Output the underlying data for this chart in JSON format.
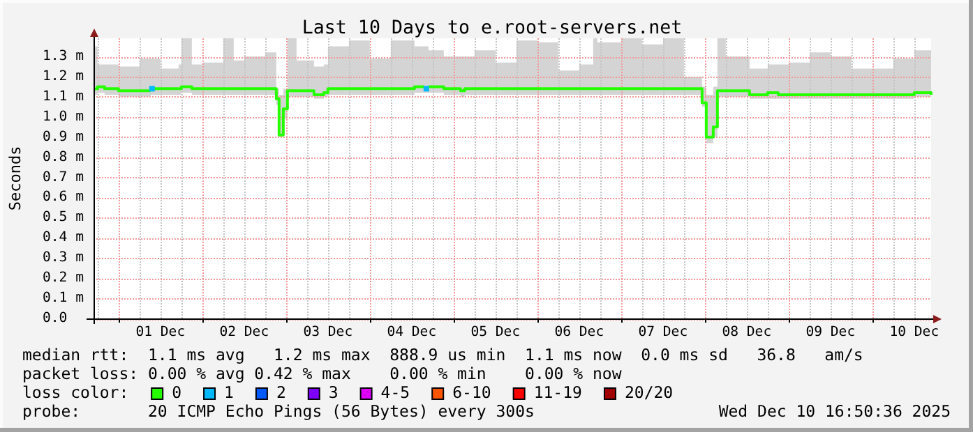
{
  "chart_data": {
    "type": "step",
    "title": "Last 10 Days to e.root-servers.net",
    "ylabel": "Seconds",
    "legend_title": "loss color:",
    "legend": "bottom",
    "grid": true,
    "x": [
      "2025-11-30T16:50",
      "2025-11-30T18:00",
      "2025-11-30T20:00",
      "2025-12-01T00:00",
      "2025-12-01T06:00",
      "2025-12-01T09:12",
      "2025-12-01T10:00",
      "2025-12-01T12:00",
      "2025-12-01T17:12",
      "2025-12-01T18:00",
      "2025-12-01T21:00",
      "2025-12-02T00:00",
      "2025-12-02T06:00",
      "2025-12-02T09:00",
      "2025-12-02T12:00",
      "2025-12-02T18:00",
      "2025-12-02T21:12",
      "2025-12-02T22:00",
      "2025-12-02T23:12",
      "2025-12-03T00:24",
      "2025-12-03T03:00",
      "2025-12-03T08:00",
      "2025-12-03T10:48",
      "2025-12-03T12:00",
      "2025-12-03T18:00",
      "2025-12-04T00:00",
      "2025-12-04T06:00",
      "2025-12-04T12:48",
      "2025-12-04T15:36",
      "2025-12-04T16:48",
      "2025-12-04T21:12",
      "2025-12-05T02:00",
      "2025-12-05T03:12",
      "2025-12-05T06:00",
      "2025-12-05T12:00",
      "2025-12-05T18:00",
      "2025-12-06T00:00",
      "2025-12-06T06:00",
      "2025-12-06T12:00",
      "2025-12-06T16:00",
      "2025-12-06T17:12",
      "2025-12-07T00:00",
      "2025-12-07T06:00",
      "2025-12-07T12:00",
      "2025-12-07T18:00",
      "2025-12-07T23:12",
      "2025-12-08T00:24",
      "2025-12-08T02:24",
      "2025-12-08T03:36",
      "2025-12-08T06:00",
      "2025-12-08T12:48",
      "2025-12-08T18:00",
      "2025-12-08T21:00",
      "2025-12-09T00:00",
      "2025-12-09T06:00",
      "2025-12-09T12:00",
      "2025-12-09T18:00",
      "2025-12-10T00:00",
      "2025-12-10T06:00",
      "2025-12-10T12:00",
      "2025-12-10T16:50"
    ],
    "xlim": [
      "2025-11-30T16:50",
      "2025-12-10T16:50"
    ],
    "xticks": [
      {
        "value": "2025-11-30T18:00",
        "label": null
      },
      {
        "value": "2025-12-01T00:00",
        "label": null
      },
      {
        "value": "2025-12-01T06:00",
        "label": null
      },
      {
        "value": "2025-12-01T12:00",
        "label": "01 Dec"
      },
      {
        "value": "2025-12-01T18:00",
        "label": null
      },
      {
        "value": "2025-12-02T00:00",
        "label": null
      },
      {
        "value": "2025-12-02T06:00",
        "label": null
      },
      {
        "value": "2025-12-02T12:00",
        "label": "02 Dec"
      },
      {
        "value": "2025-12-02T18:00",
        "label": null
      },
      {
        "value": "2025-12-03T00:00",
        "label": null
      },
      {
        "value": "2025-12-03T06:00",
        "label": null
      },
      {
        "value": "2025-12-03T12:00",
        "label": "03 Dec"
      },
      {
        "value": "2025-12-03T18:00",
        "label": null
      },
      {
        "value": "2025-12-04T00:00",
        "label": null
      },
      {
        "value": "2025-12-04T06:00",
        "label": null
      },
      {
        "value": "2025-12-04T12:00",
        "label": "04 Dec"
      },
      {
        "value": "2025-12-04T18:00",
        "label": null
      },
      {
        "value": "2025-12-05T00:00",
        "label": null
      },
      {
        "value": "2025-12-05T06:00",
        "label": null
      },
      {
        "value": "2025-12-05T12:00",
        "label": "05 Dec"
      },
      {
        "value": "2025-12-05T18:00",
        "label": null
      },
      {
        "value": "2025-12-06T00:00",
        "label": null
      },
      {
        "value": "2025-12-06T06:00",
        "label": null
      },
      {
        "value": "2025-12-06T12:00",
        "label": "06 Dec"
      },
      {
        "value": "2025-12-06T18:00",
        "label": null
      },
      {
        "value": "2025-12-07T00:00",
        "label": null
      },
      {
        "value": "2025-12-07T06:00",
        "label": null
      },
      {
        "value": "2025-12-07T12:00",
        "label": "07 Dec"
      },
      {
        "value": "2025-12-07T18:00",
        "label": null
      },
      {
        "value": "2025-12-08T00:00",
        "label": null
      },
      {
        "value": "2025-12-08T06:00",
        "label": null
      },
      {
        "value": "2025-12-08T12:00",
        "label": "08 Dec"
      },
      {
        "value": "2025-12-08T18:00",
        "label": null
      },
      {
        "value": "2025-12-09T00:00",
        "label": null
      },
      {
        "value": "2025-12-09T06:00",
        "label": null
      },
      {
        "value": "2025-12-09T12:00",
        "label": "09 Dec"
      },
      {
        "value": "2025-12-09T18:00",
        "label": null
      },
      {
        "value": "2025-12-10T00:00",
        "label": null
      },
      {
        "value": "2025-12-10T06:00",
        "label": null
      },
      {
        "value": "2025-12-10T12:00",
        "label": "10 Dec"
      }
    ],
    "ylim": [
      0,
      1.39
    ],
    "yticks": [
      {
        "value": 0,
        "label": "0.0"
      },
      {
        "value": 0.1,
        "label": "0.1 m"
      },
      {
        "value": 0.2,
        "label": "0.2 m"
      },
      {
        "value": 0.3,
        "label": "0.3 m"
      },
      {
        "value": 0.4,
        "label": "0.4 m"
      },
      {
        "value": 0.5,
        "label": "0.5 m"
      },
      {
        "value": 0.6,
        "label": "0.6 m"
      },
      {
        "value": 0.7,
        "label": "0.7 m"
      },
      {
        "value": 0.8,
        "label": "0.8 m"
      },
      {
        "value": 0.9,
        "label": "0.9 m"
      },
      {
        "value": 1.0,
        "label": "1.0 m"
      },
      {
        "value": 1.1,
        "label": "1.1 m"
      },
      {
        "value": 1.2,
        "label": "1.2 m"
      },
      {
        "value": 1.3,
        "label": "1.3 m"
      }
    ],
    "series": [
      {
        "name": "0",
        "color": "#26ff00",
        "values": [
          1.14,
          1.15,
          1.14,
          1.13,
          1.13,
          null,
          1.14,
          1.14,
          1.14,
          1.15,
          1.14,
          1.14,
          1.14,
          1.14,
          1.14,
          1.14,
          1.09,
          0.91,
          1.04,
          1.13,
          1.13,
          1.11,
          1.12,
          1.14,
          1.14,
          1.14,
          1.14,
          1.15,
          null,
          1.15,
          1.14,
          1.13,
          1.14,
          1.14,
          1.14,
          1.14,
          1.14,
          1.14,
          1.14,
          1.14,
          1.14,
          1.14,
          1.14,
          1.14,
          1.14,
          1.07,
          0.9,
          0.95,
          1.13,
          1.13,
          1.11,
          1.12,
          1.11,
          1.11,
          1.11,
          1.11,
          1.11,
          1.11,
          1.11,
          1.12,
          1.11
        ],
        "lower": [
          1.11,
          1.12,
          1.11,
          1.1,
          1.1,
          1.11,
          1.11,
          1.11,
          1.11,
          1.12,
          1.11,
          1.11,
          1.11,
          1.11,
          1.11,
          1.11,
          1.06,
          0.9,
          0.99,
          1.1,
          1.1,
          1.09,
          1.1,
          1.11,
          1.11,
          1.11,
          1.11,
          1.12,
          1.12,
          1.12,
          1.11,
          1.1,
          1.11,
          1.11,
          1.11,
          1.11,
          1.11,
          1.11,
          1.11,
          1.11,
          1.11,
          1.11,
          1.11,
          1.11,
          1.11,
          1.05,
          0.87,
          0.9,
          1.1,
          1.1,
          1.09,
          1.09,
          1.09,
          1.09,
          1.09,
          1.09,
          1.09,
          1.09,
          1.09,
          1.1,
          1.09
        ],
        "upper": [
          1.35,
          1.26,
          1.26,
          1.25,
          1.29,
          1.29,
          1.29,
          1.24,
          1.26,
          1.39,
          1.26,
          1.27,
          1.39,
          1.28,
          1.3,
          1.32,
          1.14,
          1.11,
          1.14,
          1.39,
          1.28,
          1.25,
          1.26,
          1.35,
          1.38,
          1.29,
          1.38,
          1.35,
          1.35,
          1.33,
          1.3,
          1.3,
          1.3,
          1.33,
          1.27,
          1.38,
          1.37,
          1.23,
          1.26,
          1.39,
          1.37,
          1.39,
          1.36,
          1.39,
          1.2,
          1.15,
          1.11,
          1.15,
          1.39,
          1.3,
          1.24,
          1.26,
          1.26,
          1.27,
          1.32,
          1.3,
          1.24,
          1.24,
          1.29,
          1.33,
          1.33
        ]
      },
      {
        "name": "1",
        "color": "#00b8ff",
        "type": "scatter",
        "marker": "square",
        "x": [
          "2025-12-01T09:36",
          "2025-12-04T16:12"
        ],
        "values": [
          1.14,
          1.14
        ]
      },
      {
        "name": "2",
        "color": "#0059ff",
        "values": [
          null,
          null,
          null,
          null,
          null,
          null,
          null,
          null,
          null,
          null,
          null,
          null,
          null,
          null,
          null,
          null,
          null,
          null,
          null,
          null,
          null,
          null,
          null,
          null,
          null,
          null,
          null,
          null,
          null,
          null,
          null,
          null,
          null,
          null,
          null,
          null,
          null,
          null,
          null,
          null,
          null,
          null,
          null,
          null,
          null,
          null,
          null,
          null,
          null,
          null,
          null,
          null,
          null,
          null,
          null,
          null,
          null,
          null,
          null,
          null,
          null
        ]
      },
      {
        "name": "3",
        "color": "#7e00ff",
        "values": [
          null,
          null,
          null,
          null,
          null,
          null,
          null,
          null,
          null,
          null,
          null,
          null,
          null,
          null,
          null,
          null,
          null,
          null,
          null,
          null,
          null,
          null,
          null,
          null,
          null,
          null,
          null,
          null,
          null,
          null,
          null,
          null,
          null,
          null,
          null,
          null,
          null,
          null,
          null,
          null,
          null,
          null,
          null,
          null,
          null,
          null,
          null,
          null,
          null,
          null,
          null,
          null,
          null,
          null,
          null,
          null,
          null,
          null,
          null,
          null,
          null
        ]
      },
      {
        "name": "4-5",
        "color": "#dd00ff",
        "values": [
          null,
          null,
          null,
          null,
          null,
          null,
          null,
          null,
          null,
          null,
          null,
          null,
          null,
          null,
          null,
          null,
          null,
          null,
          null,
          null,
          null,
          null,
          null,
          null,
          null,
          null,
          null,
          null,
          null,
          null,
          null,
          null,
          null,
          null,
          null,
          null,
          null,
          null,
          null,
          null,
          null,
          null,
          null,
          null,
          null,
          null,
          null,
          null,
          null,
          null,
          null,
          null,
          null,
          null,
          null,
          null,
          null,
          null,
          null,
          null,
          null
        ]
      },
      {
        "name": "6-10",
        "color": "#ff5500",
        "values": [
          null,
          null,
          null,
          null,
          null,
          null,
          null,
          null,
          null,
          null,
          null,
          null,
          null,
          null,
          null,
          null,
          null,
          null,
          null,
          null,
          null,
          null,
          null,
          null,
          null,
          null,
          null,
          null,
          null,
          null,
          null,
          null,
          null,
          null,
          null,
          null,
          null,
          null,
          null,
          null,
          null,
          null,
          null,
          null,
          null,
          null,
          null,
          null,
          null,
          null,
          null,
          null,
          null,
          null,
          null,
          null,
          null,
          null,
          null,
          null,
          null
        ]
      },
      {
        "name": "11-19",
        "color": "#ff0000",
        "values": [
          null,
          null,
          null,
          null,
          null,
          null,
          null,
          null,
          null,
          null,
          null,
          null,
          null,
          null,
          null,
          null,
          null,
          null,
          null,
          null,
          null,
          null,
          null,
          null,
          null,
          null,
          null,
          null,
          null,
          null,
          null,
          null,
          null,
          null,
          null,
          null,
          null,
          null,
          null,
          null,
          null,
          null,
          null,
          null,
          null,
          null,
          null,
          null,
          null,
          null,
          null,
          null,
          null,
          null,
          null,
          null,
          null,
          null,
          null,
          null,
          null
        ]
      },
      {
        "name": "20/20",
        "color": "#a10000",
        "values": [
          null,
          null,
          null,
          null,
          null,
          null,
          null,
          null,
          null,
          null,
          null,
          null,
          null,
          null,
          null,
          null,
          null,
          null,
          null,
          null,
          null,
          null,
          null,
          null,
          null,
          null,
          null,
          null,
          null,
          null,
          null,
          null,
          null,
          null,
          null,
          null,
          null,
          null,
          null,
          null,
          null,
          null,
          null,
          null,
          null,
          null,
          null,
          null,
          null,
          null,
          null,
          null,
          null,
          null,
          null,
          null,
          null,
          null,
          null,
          null,
          null
        ]
      }
    ],
    "annotations": [
      "median rtt:  1.1 ms avg   1.2 ms max  888.9 us min  1.1 ms now  0.0 ms sd   36.8   am/s",
      "packet loss: 0.00 % avg 0.42 % max    0.00 % min    0.00 % now",
      "probe:       20 ICMP Echo Pings (56 Bytes) every 300s",
      "Wed Dec 10 16:50:36 2025"
    ]
  }
}
